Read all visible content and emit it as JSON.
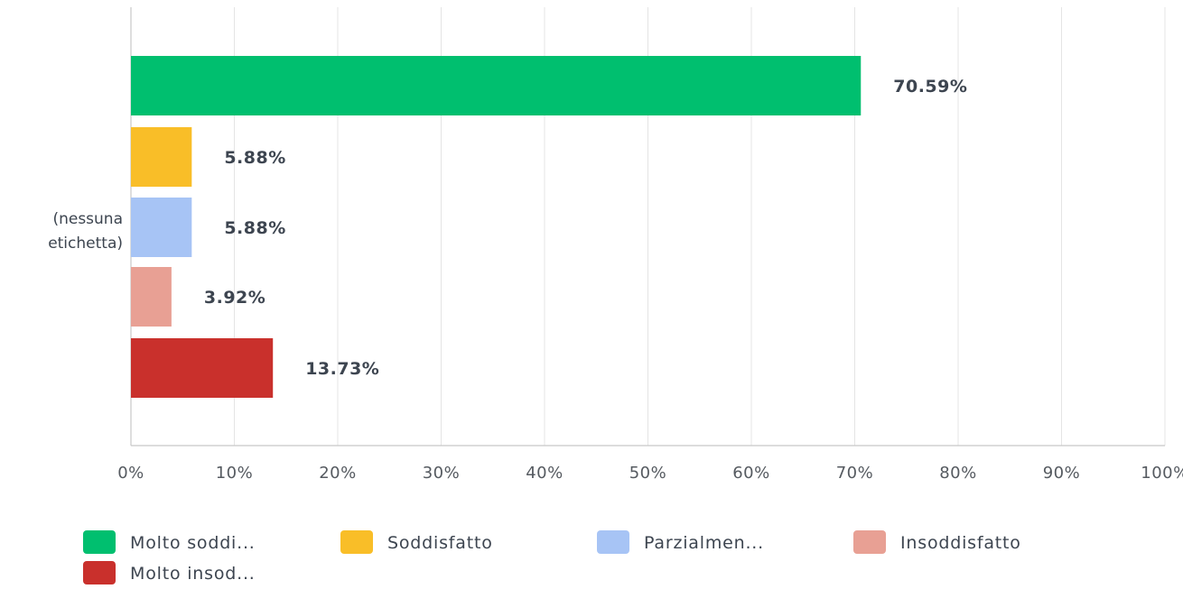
{
  "chart_data": {
    "type": "bar",
    "orientation": "horizontal",
    "categories": [
      "(nessuna etichetta)"
    ],
    "category_label_lines": [
      "(nessuna",
      "etichetta)"
    ],
    "series": [
      {
        "name": "Molto soddi...",
        "values": [
          70.59
        ],
        "label": "70.59%",
        "color": "#00bf6f"
      },
      {
        "name": "Soddisfatto",
        "values": [
          5.88
        ],
        "label": "5.88%",
        "color": "#f9be28"
      },
      {
        "name": "Parzialmen...",
        "values": [
          5.88
        ],
        "label": "5.88%",
        "color": "#a7c4f5"
      },
      {
        "name": "Insoddisfatto",
        "values": [
          3.92
        ],
        "label": "3.92%",
        "color": "#e8a094"
      },
      {
        "name": "Molto insod...",
        "values": [
          13.73
        ],
        "label": "13.73%",
        "color": "#c9302c"
      }
    ],
    "xlim": [
      0,
      100
    ],
    "x_ticks": [
      "0%",
      "10%",
      "20%",
      "30%",
      "40%",
      "50%",
      "60%",
      "70%",
      "80%",
      "90%",
      "100%"
    ],
    "grid": true,
    "legend_position": "bottom"
  }
}
